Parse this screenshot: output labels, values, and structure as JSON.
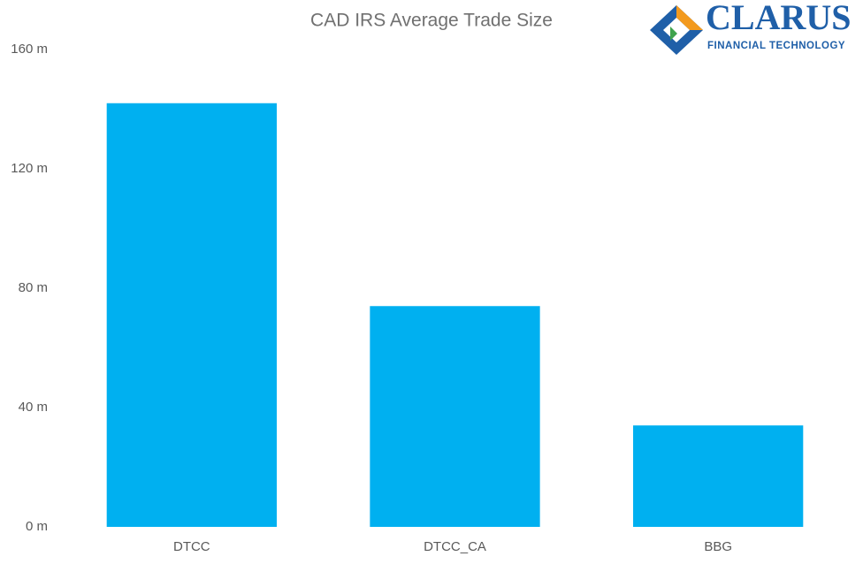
{
  "chart_data": {
    "type": "bar",
    "title": "CAD IRS Average Trade Size",
    "categories": [
      "DTCC",
      "DTCC_CA",
      "BBG"
    ],
    "values": [
      142,
      74,
      34
    ],
    "color": "#00b0f0",
    "ylim": [
      0,
      160
    ],
    "yticks": [
      {
        "value": 0,
        "label": "0 m"
      },
      {
        "value": 40,
        "label": "40 m"
      },
      {
        "value": 80,
        "label": "80 m"
      },
      {
        "value": 120,
        "label": "120 m"
      },
      {
        "value": 160,
        "label": "160 m"
      }
    ],
    "grid": false
  },
  "logo": {
    "name": "CLARUS",
    "tagline": "FINANCIAL TECHNOLOGY"
  }
}
